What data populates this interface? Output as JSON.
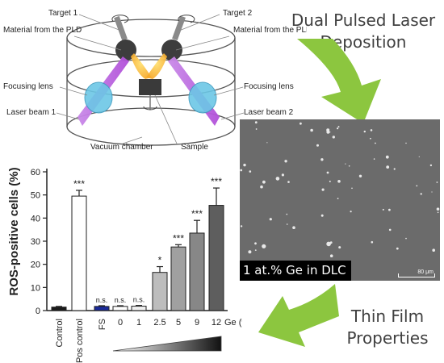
{
  "title_top": "Dual Pulsed Laser Deposition",
  "title_bottom": "Thin Film Properties",
  "schematic": {
    "target1": "Target 1",
    "target2": "Target 2",
    "material_left": "Material from the PLD",
    "material_right": "Material from the PLD",
    "focusing_lens_left": "Focusing lens",
    "focusing_lens_right": "Focusing lens",
    "laser_beam1": "Laser beam 1",
    "laser_beam2": "Laser beam 2",
    "vacuum_chamber": "Vacuum chamber",
    "sample": "Sample"
  },
  "sem": {
    "caption": "1 at.% Ge in DLC",
    "scale": "80 μm"
  },
  "chart_data": {
    "type": "bar",
    "ylabel": "ROS-positive cells (%)",
    "ylim": [
      0,
      60
    ],
    "yticks": [
      0,
      10,
      20,
      30,
      40,
      50,
      60
    ],
    "categories": [
      "Control",
      "Pos control",
      "FS",
      "0",
      "1",
      "2.5",
      "5",
      "9",
      "12"
    ],
    "values": [
      1.5,
      49.5,
      1.8,
      1.8,
      1.9,
      16.5,
      27.5,
      33.5,
      45.5
    ],
    "errors": [
      0.3,
      2.5,
      0.3,
      0.3,
      0.3,
      2.5,
      1.0,
      5.5,
      7.5
    ],
    "significance": [
      "",
      "***",
      "n.s.",
      "n.s.",
      "n.s.",
      "*",
      "***",
      "***",
      "***"
    ],
    "bar_colors": [
      "#1a1a1a",
      "#ffffff",
      "#1a2a9a",
      "#ffffff",
      "#f0f0f0",
      "#bdbdbd",
      "#a0a0a0",
      "#878787",
      "#5e5e5e"
    ],
    "x_suffix": "Ge (%)"
  }
}
